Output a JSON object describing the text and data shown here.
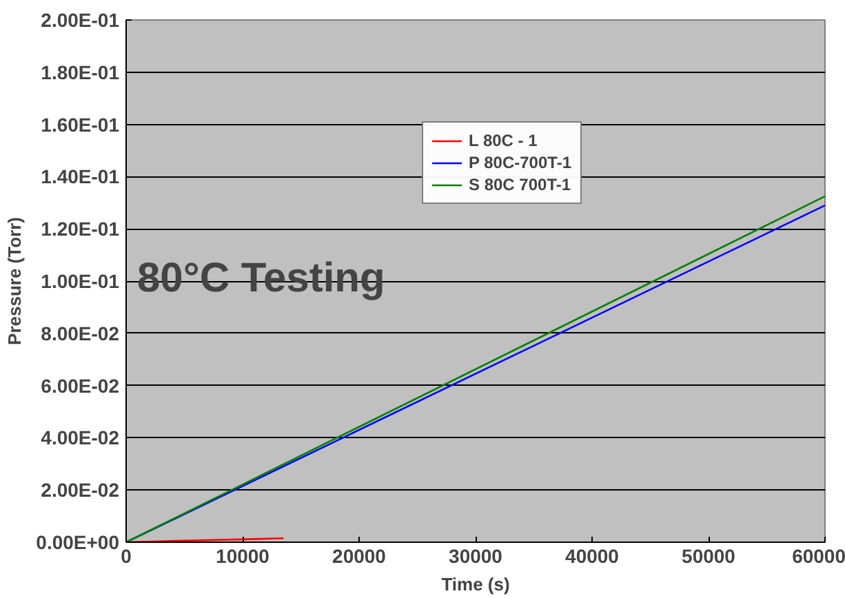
{
  "chart_data": {
    "type": "line",
    "xlabel": "Time (s)",
    "ylabel": "Pressure (Torr)",
    "annotations": [
      "80°C Testing"
    ],
    "xlim": [
      0,
      60000
    ],
    "xticks": [
      0,
      10000,
      20000,
      30000,
      40000,
      50000,
      60000
    ],
    "ylim": [
      0,
      0.2
    ],
    "yticks": [
      {
        "value": 0,
        "label": "0.00E+00"
      },
      {
        "value": 0.02,
        "label": "2.00E-02"
      },
      {
        "value": 0.04,
        "label": "4.00E-02"
      },
      {
        "value": 0.06,
        "label": "6.00E-02"
      },
      {
        "value": 0.08,
        "label": "8.00E-02"
      },
      {
        "value": 0.1,
        "label": "1.00E-01"
      },
      {
        "value": 0.12,
        "label": "1.20E-01"
      },
      {
        "value": 0.14,
        "label": "1.40E-01"
      },
      {
        "value": 0.16,
        "label": "1.60E-01"
      },
      {
        "value": 0.18,
        "label": "1.80E-01"
      },
      {
        "value": 0.2,
        "label": "2.00E-01"
      }
    ],
    "grid": "y",
    "legend": "top right",
    "marker": "none",
    "line_style": "solid",
    "series": [
      {
        "name": "L 80C - 1",
        "color": "#ff0000",
        "x": [
          0,
          5000,
          10000,
          13500
        ],
        "values": [
          0,
          0.0006,
          0.0011,
          0.0015
        ]
      },
      {
        "name": "P 80C-700T-1",
        "color": "#0000ff",
        "x": [
          0,
          60000
        ],
        "values": [
          0,
          0.129
        ]
      },
      {
        "name": "S 80C 700T-1",
        "color": "#008000",
        "x": [
          0,
          60000
        ],
        "values": [
          0,
          0.1325
        ]
      }
    ]
  }
}
